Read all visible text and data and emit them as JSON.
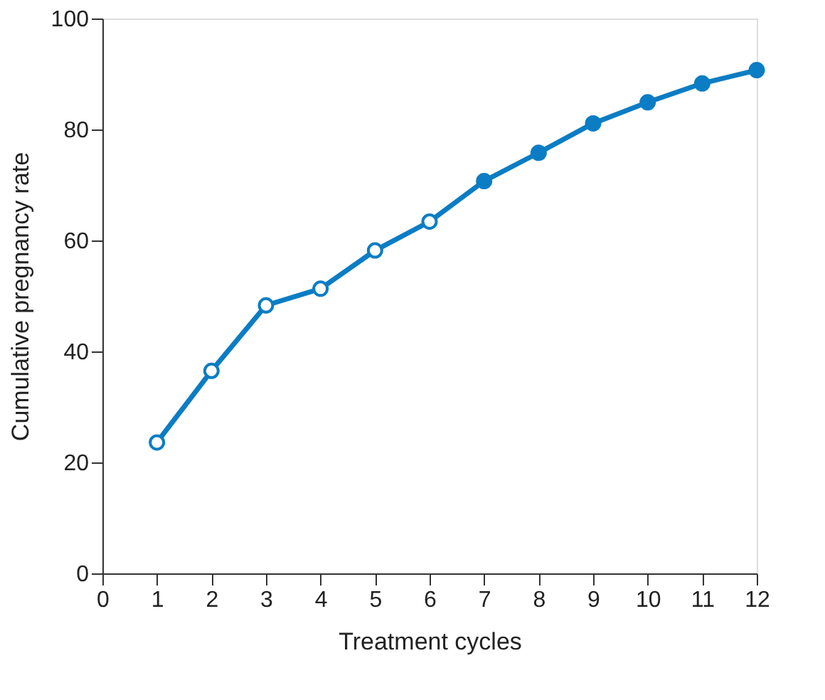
{
  "chart_data": {
    "type": "line",
    "xlabel": "Treatment cycles",
    "ylabel": "Cumulative pregnancy rate",
    "x": [
      1,
      2,
      3,
      4,
      5,
      6,
      7,
      8,
      9,
      10,
      11,
      12
    ],
    "series": [
      {
        "color": "#0b7dc4",
        "marker": "circle",
        "line_style": "solid",
        "values": [
          23.6,
          36.5,
          48.3,
          51.3,
          58.2,
          63.4,
          70.7,
          75.8,
          81.1,
          84.9,
          88.3,
          90.7
        ],
        "colors": [
          "#ffffff",
          "#ffffff",
          "#ffffff",
          "#ffffff",
          "#ffffff",
          "#ffffff",
          "#0b7dc4",
          "#0b7dc4",
          "#0b7dc4",
          "#0b7dc4",
          "#0b7dc4",
          "#0b7dc4"
        ]
      }
    ],
    "xlim": [
      0,
      12
    ],
    "xticks": [
      0,
      1,
      2,
      3,
      4,
      5,
      6,
      7,
      8,
      9,
      10,
      11,
      12
    ],
    "ylim": [
      0,
      100
    ],
    "yticks": [
      0,
      20,
      40,
      60,
      80,
      100
    ],
    "grid": false
  }
}
